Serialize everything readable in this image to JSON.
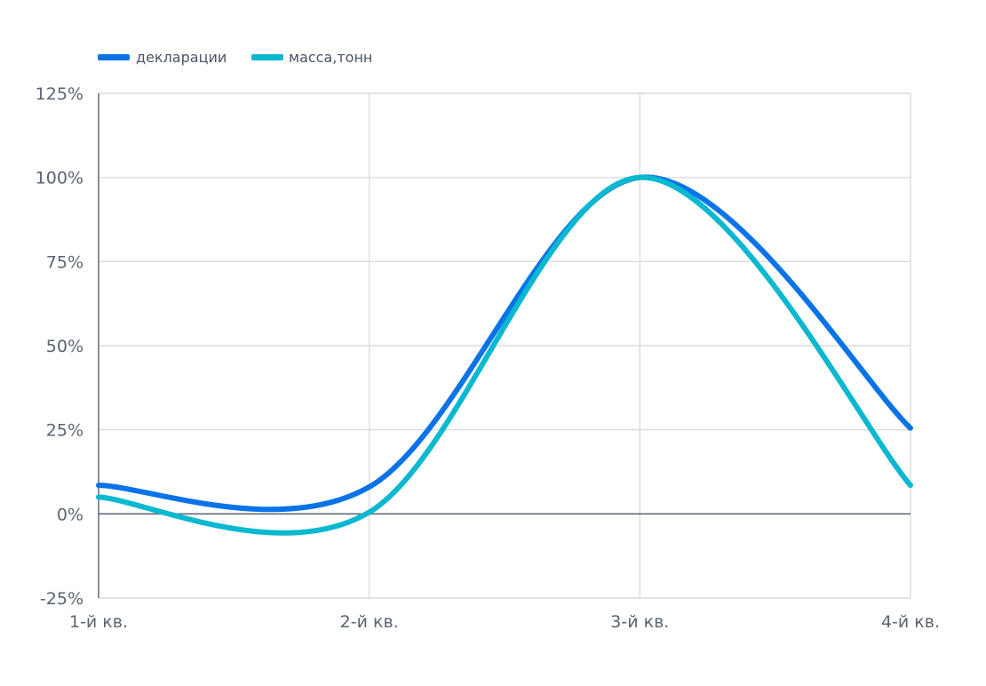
{
  "chart_data": {
    "type": "line",
    "title": "",
    "xlabel": "",
    "ylabel": "",
    "categories": [
      "1-й кв.",
      "2-й кв.",
      "3-й кв.",
      "4-й кв."
    ],
    "y_ticks": [
      "125%",
      "100%",
      "75%",
      "50%",
      "25%",
      "0%",
      "-25%"
    ],
    "ylim": [
      -25,
      125
    ],
    "grid": true,
    "legend_position": "top-left",
    "series": [
      {
        "name": "декларации",
        "color": "#0a73e8",
        "values": [
          8.5,
          8.0,
          100,
          25.5
        ]
      },
      {
        "name": "масса,тонн",
        "color": "#0ab8d0",
        "values": [
          5.0,
          0.5,
          100,
          8.5
        ]
      }
    ]
  }
}
